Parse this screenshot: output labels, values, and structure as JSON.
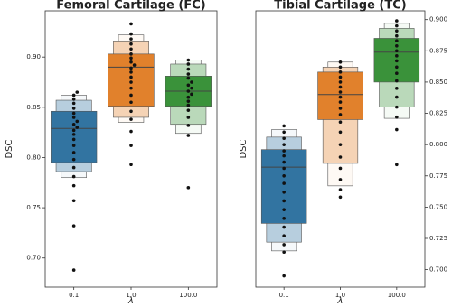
{
  "chart_data": [
    {
      "type": "boxen",
      "title": "Femoral Cartilage (FC)",
      "xlabel": "λ",
      "ylabel": "DSC",
      "ylim": [
        0.671,
        0.946
      ],
      "yticks": [
        {
          "value": 0.7,
          "label": "0.70"
        },
        {
          "value": 0.75,
          "label": "0.75"
        },
        {
          "value": 0.8,
          "label": "0.80"
        },
        {
          "value": 0.85,
          "label": "0.85"
        },
        {
          "value": 0.9,
          "label": "0.90"
        }
      ],
      "yaxis_side": "left",
      "categories": [
        "0.1",
        "1.0",
        "100.0"
      ],
      "boxes": [
        {
          "color": "#3274a1",
          "median": 0.829,
          "levels": [
            [
              0.795,
              0.846
            ],
            [
              0.786,
              0.857
            ],
            [
              0.78,
              0.862
            ]
          ],
          "points": [
            0.688,
            0.732,
            0.757,
            0.772,
            0.781,
            0.79,
            0.798,
            0.805,
            0.812,
            0.818,
            0.823,
            0.827,
            0.83,
            0.833,
            0.836,
            0.84,
            0.844,
            0.849,
            0.854,
            0.858,
            0.862,
            0.865
          ]
        },
        {
          "color": "#e1812c",
          "median": 0.89,
          "levels": [
            [
              0.851,
              0.903
            ],
            [
              0.84,
              0.916
            ],
            [
              0.835,
              0.922
            ]
          ],
          "points": [
            0.793,
            0.812,
            0.826,
            0.838,
            0.846,
            0.855,
            0.862,
            0.869,
            0.875,
            0.88,
            0.885,
            0.889,
            0.892,
            0.895,
            0.899,
            0.903,
            0.908,
            0.913,
            0.918,
            0.923,
            0.933
          ]
        },
        {
          "color": "#3a923a",
          "median": 0.866,
          "levels": [
            [
              0.851,
              0.881
            ],
            [
              0.833,
              0.893
            ],
            [
              0.824,
              0.897
            ]
          ],
          "points": [
            0.77,
            0.822,
            0.832,
            0.84,
            0.847,
            0.852,
            0.856,
            0.86,
            0.863,
            0.866,
            0.869,
            0.872,
            0.875,
            0.879,
            0.883,
            0.888,
            0.893,
            0.897
          ]
        }
      ]
    },
    {
      "type": "boxen",
      "title": "Tibial Cartilage (TC)",
      "xlabel": "λ",
      "ylabel": "DSC",
      "ylim": [
        0.686,
        0.907
      ],
      "yticks": [
        {
          "value": 0.7,
          "label": "0.700"
        },
        {
          "value": 0.725,
          "label": "0.725"
        },
        {
          "value": 0.75,
          "label": "0.750"
        },
        {
          "value": 0.775,
          "label": "0.775"
        },
        {
          "value": 0.8,
          "label": "0.800"
        },
        {
          "value": 0.825,
          "label": "0.825"
        },
        {
          "value": 0.85,
          "label": "0.850"
        },
        {
          "value": 0.875,
          "label": "0.875"
        },
        {
          "value": 0.9,
          "label": "0.900"
        }
      ],
      "yaxis_side": "right",
      "categories": [
        "0.1",
        "1.0",
        "100.0"
      ],
      "boxes": [
        {
          "color": "#3274a1",
          "median": 0.782,
          "levels": [
            [
              0.737,
              0.796
            ],
            [
              0.722,
              0.806
            ],
            [
              0.715,
              0.812
            ]
          ],
          "points": [
            0.695,
            0.714,
            0.72,
            0.727,
            0.734,
            0.741,
            0.748,
            0.755,
            0.762,
            0.769,
            0.775,
            0.781,
            0.786,
            0.791,
            0.795,
            0.8,
            0.805,
            0.81,
            0.815
          ]
        },
        {
          "color": "#e1812c",
          "median": 0.84,
          "levels": [
            [
              0.82,
              0.858
            ],
            [
              0.785,
              0.862
            ],
            [
              0.767,
              0.866
            ]
          ],
          "points": [
            0.758,
            0.764,
            0.772,
            0.781,
            0.79,
            0.8,
            0.81,
            0.818,
            0.824,
            0.829,
            0.834,
            0.838,
            0.842,
            0.846,
            0.85,
            0.854,
            0.858,
            0.862,
            0.866
          ]
        },
        {
          "color": "#3a923a",
          "median": 0.874,
          "levels": [
            [
              0.85,
              0.885
            ],
            [
              0.83,
              0.893
            ],
            [
              0.821,
              0.897
            ]
          ],
          "points": [
            0.784,
            0.812,
            0.822,
            0.83,
            0.838,
            0.845,
            0.851,
            0.857,
            0.862,
            0.867,
            0.871,
            0.875,
            0.879,
            0.883,
            0.887,
            0.891,
            0.895,
            0.899
          ]
        }
      ]
    }
  ]
}
